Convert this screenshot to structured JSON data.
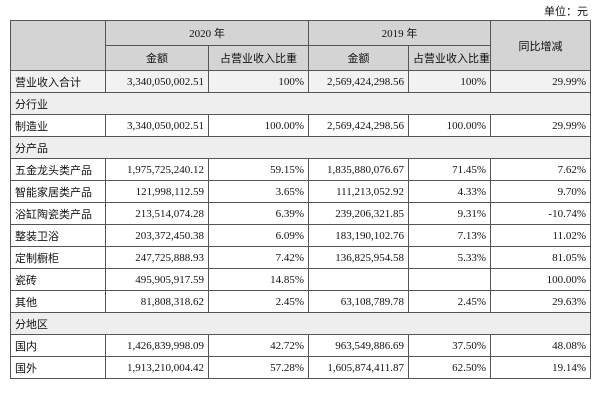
{
  "unit": "单位：元",
  "header": {
    "year_a": "2020 年",
    "year_b": "2019 年",
    "yoy": "同比增减",
    "amount_a": "金额",
    "share_a": "占营业收入比重",
    "amount_b": "金额",
    "share_b": "占营业收入比重"
  },
  "table": {
    "rows": [
      [
        "营业收入合计",
        "3,340,050,002.51",
        "100%",
        "2,569,424,298.56",
        "100%",
        "29.99%"
      ],
      [
        "分行业"
      ],
      [
        "制造业",
        "3,340,050,002.51",
        "100.00%",
        "2,569,424,298.56",
        "100.00%",
        "29.99%"
      ],
      [
        "分产品"
      ],
      [
        "五金龙头类产品",
        "1,975,725,240.12",
        "59.15%",
        "1,835,880,076.67",
        "71.45%",
        "7.62%"
      ],
      [
        "智能家居类产品",
        "121,998,112.59",
        "3.65%",
        "111,213,052.92",
        "4.33%",
        "9.70%"
      ],
      [
        "浴缸陶瓷类产品",
        "213,514,074.28",
        "6.39%",
        "239,206,321.85",
        "9.31%",
        "-10.74%"
      ],
      [
        "整装卫浴",
        "203,372,450.38",
        "6.09%",
        "183,190,102.76",
        "7.13%",
        "11.02%"
      ],
      [
        "定制橱柜",
        "247,725,888.93",
        "7.42%",
        "136,825,954.58",
        "5.33%",
        "81.05%"
      ],
      [
        "瓷砖",
        "495,905,917.59",
        "14.85%",
        null,
        null,
        "100.00%"
      ],
      [
        "其他",
        "81,808,318.62",
        "2.45%",
        "63,108,789.78",
        "2.45%",
        "29.63%"
      ],
      [
        "分地区"
      ],
      [
        "国内",
        "1,426,839,998.09",
        "42.72%",
        "963,549,886.69",
        "37.50%",
        "48.08%"
      ],
      [
        "国外",
        "1,913,210,004.42",
        "57.28%",
        "1,605,874,411.87",
        "62.50%",
        "19.14%"
      ]
    ]
  }
}
